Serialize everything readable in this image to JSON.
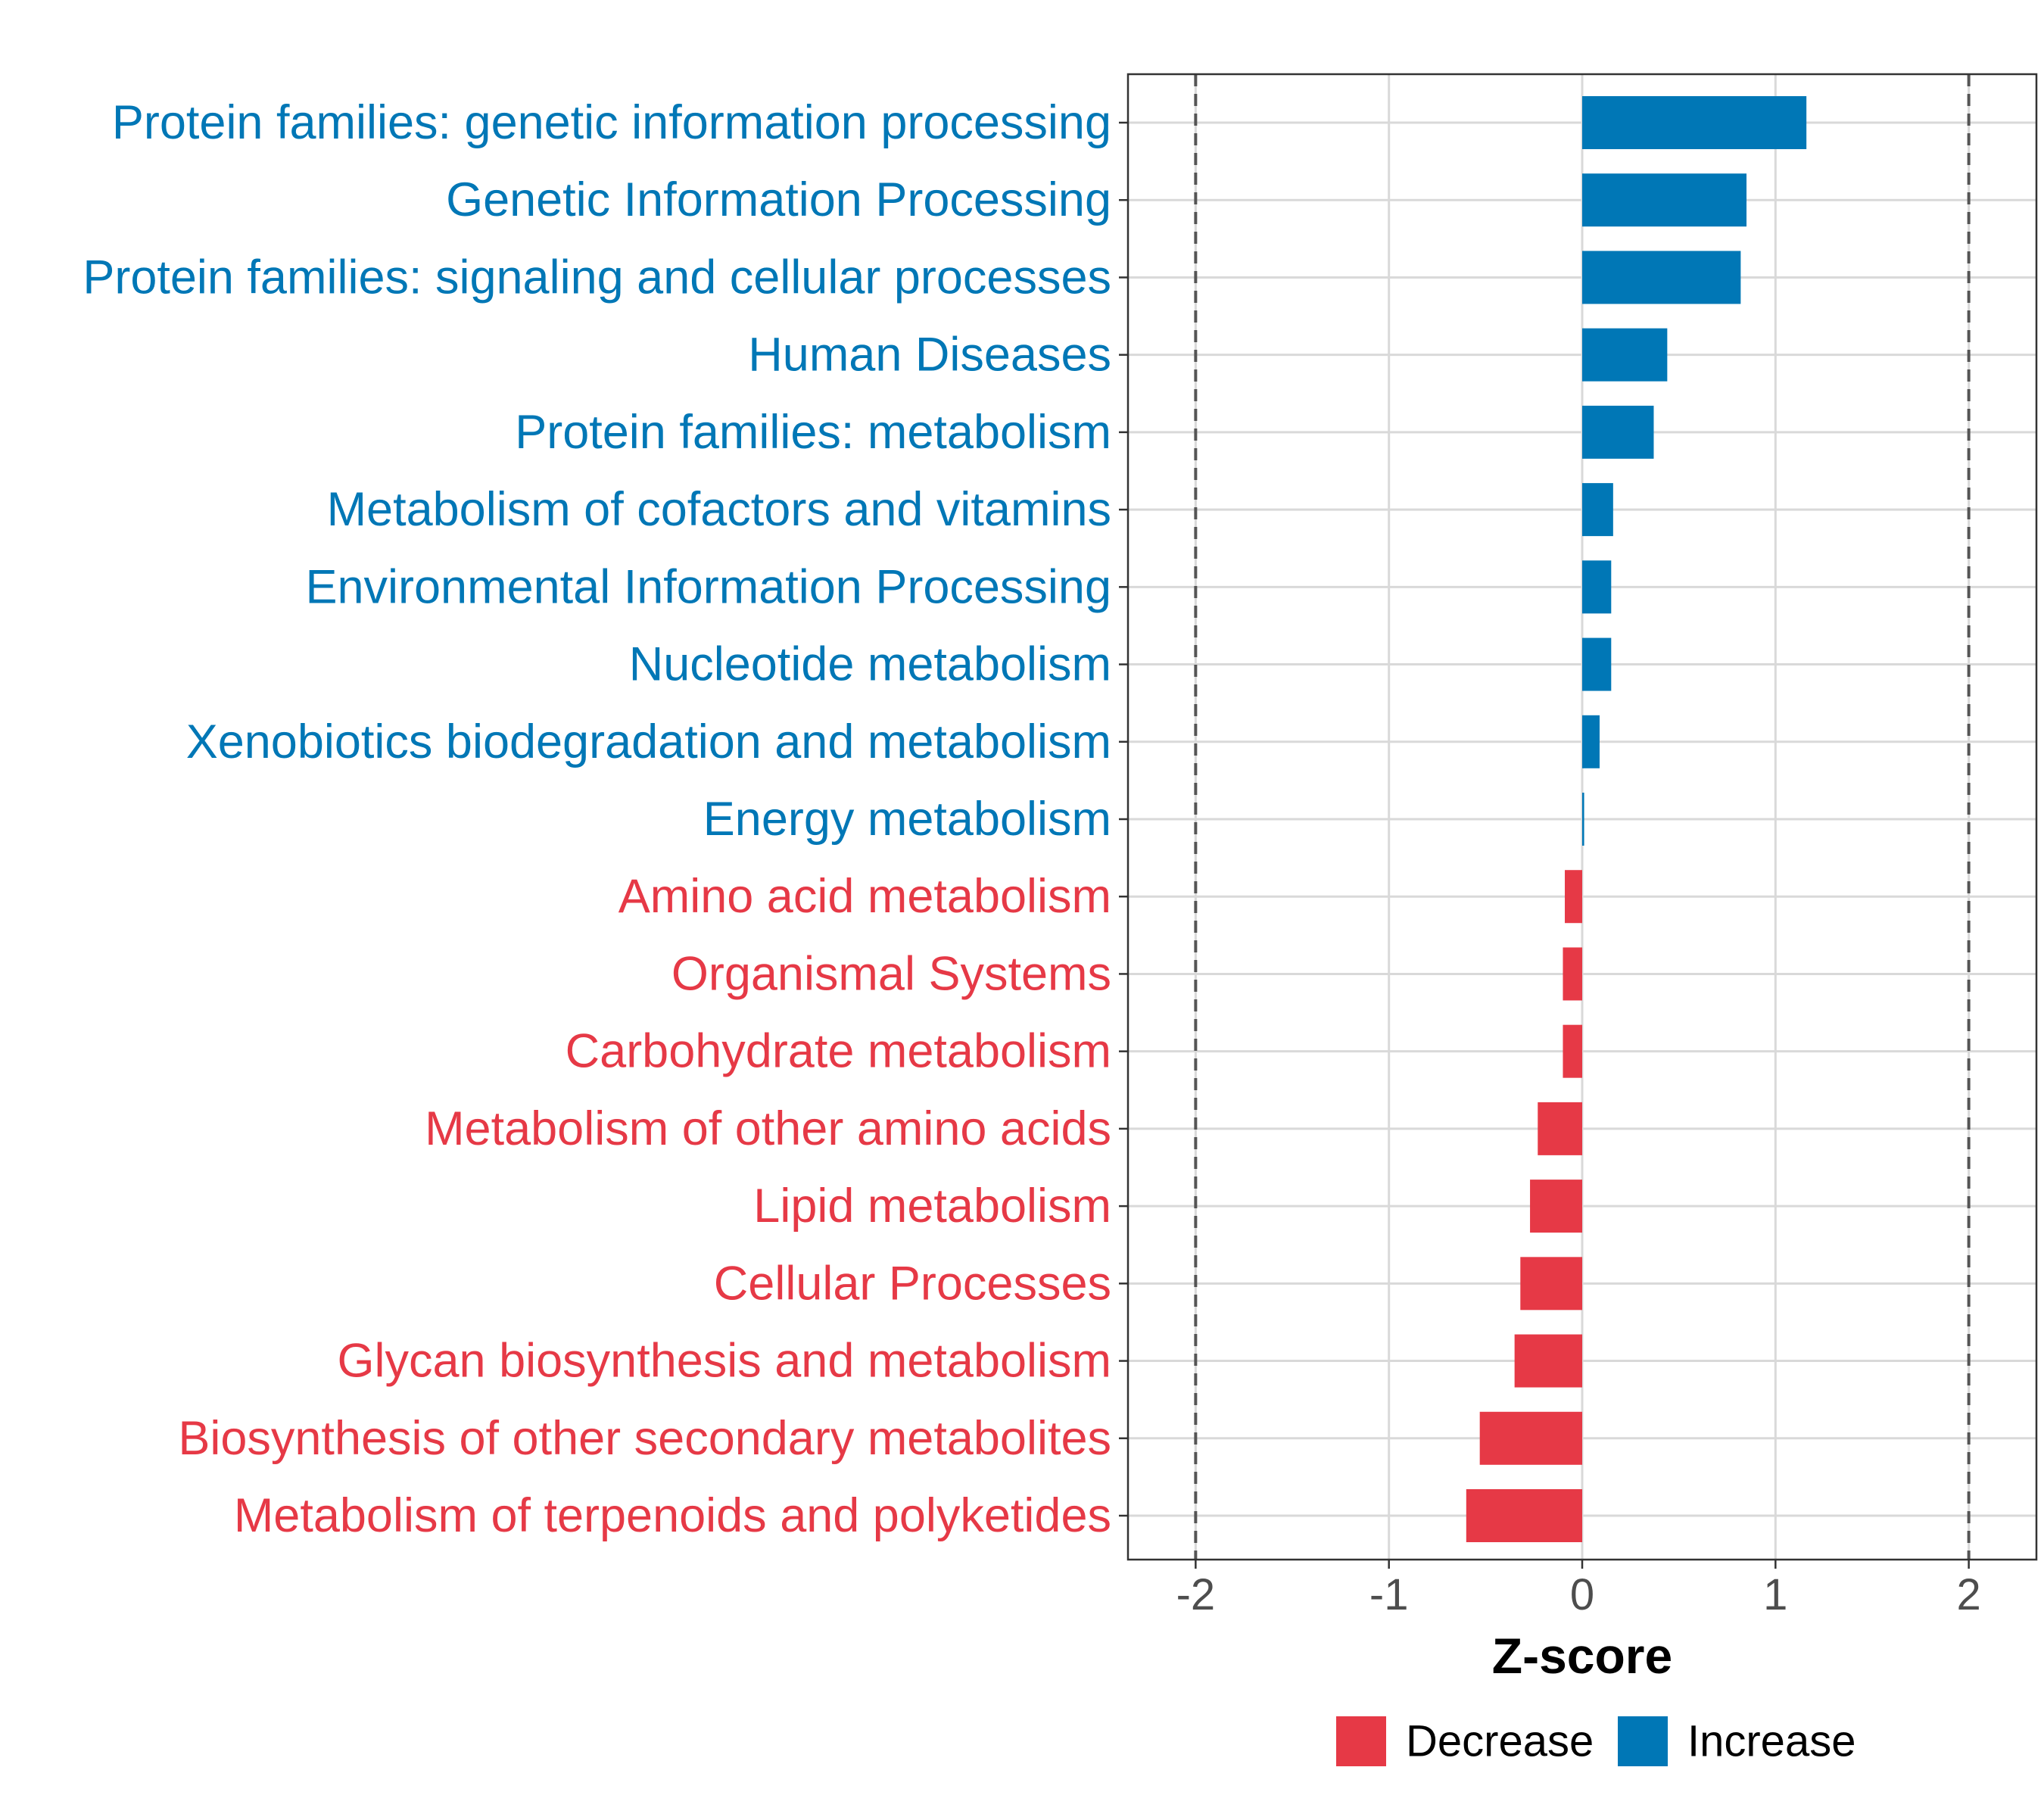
{
  "chart_data": {
    "type": "bar",
    "orientation": "horizontal",
    "title": "",
    "xlabel": "Z-score",
    "ylabel": "",
    "xlim": [
      -2.35,
      2.35
    ],
    "xticks": [
      -2,
      -1,
      0,
      1,
      2
    ],
    "xtick_labels": [
      "-2",
      "-1",
      "0",
      "1",
      "2"
    ],
    "reference_lines": [
      -2,
      2
    ],
    "grid": true,
    "legend_position": "bottom",
    "categories": [
      "Protein families: genetic information processing",
      "Genetic Information Processing",
      "Protein families: signaling and cellular processes",
      "Human Diseases",
      "Protein families: metabolism",
      "Metabolism of cofactors and vitamins",
      "Environmental Information Processing",
      "Nucleotide metabolism",
      "Xenobiotics biodegradation and metabolism",
      "Energy metabolism",
      "Amino acid metabolism",
      "Organismal Systems",
      "Carbohydrate metabolism",
      "Metabolism of other amino acids",
      "Lipid metabolism",
      "Cellular Processes",
      "Glycan biosynthesis and metabolism",
      "Biosynthesis of other secondary metabolites",
      "Metabolism of terpenoids and polyketides"
    ],
    "values": [
      1.16,
      0.85,
      0.82,
      0.44,
      0.37,
      0.16,
      0.15,
      0.15,
      0.09,
      0.01,
      -0.09,
      -0.1,
      -0.1,
      -0.23,
      -0.27,
      -0.32,
      -0.35,
      -0.53,
      -0.6
    ],
    "groups": [
      "Increase",
      "Increase",
      "Increase",
      "Increase",
      "Increase",
      "Increase",
      "Increase",
      "Increase",
      "Increase",
      "Increase",
      "Decrease",
      "Decrease",
      "Decrease",
      "Decrease",
      "Decrease",
      "Decrease",
      "Decrease",
      "Decrease",
      "Decrease"
    ],
    "legend": [
      {
        "label": "Decrease",
        "color": "#e63946"
      },
      {
        "label": "Increase",
        "color": "#0077b6"
      }
    ]
  },
  "colors": {
    "Increase": "#0077b6",
    "Decrease": "#e63946",
    "grid": "#d9d9d9",
    "frame": "#333333",
    "reference_line": "#555555"
  }
}
